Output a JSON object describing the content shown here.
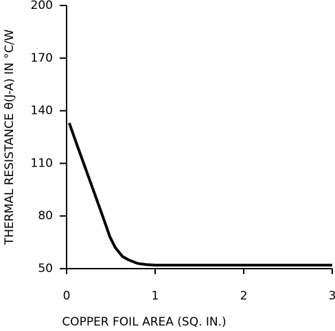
{
  "chart_data": {
    "type": "line",
    "xlabel": "COPPER FOIL AREA (SQ. IN.)",
    "ylabel": "THERMAL RESISTANCE θ(J-A) IN °C/W",
    "x": [
      0.03,
      0.1,
      0.2,
      0.3,
      0.4,
      0.49,
      0.55,
      0.63,
      0.7,
      0.8,
      0.9,
      1,
      1.5,
      2,
      2.5,
      3
    ],
    "series": [
      {
        "color": "#000000",
        "values": [
          133,
          123,
          109,
          95,
          81,
          68,
          62,
          57,
          55,
          53,
          52.3,
          52,
          52,
          52,
          52,
          52
        ]
      }
    ],
    "xlim": [
      0,
      3
    ],
    "xticks": [
      0,
      1,
      2,
      3
    ],
    "ylim": [
      50,
      200
    ],
    "yticks": [
      50,
      80,
      110,
      140,
      170,
      200
    ],
    "grid": false
  }
}
